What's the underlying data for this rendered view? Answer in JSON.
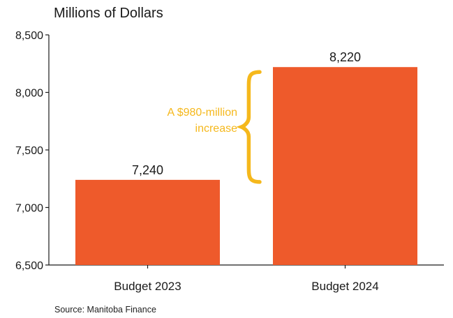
{
  "unit_label": "Millions of Dollars",
  "source": "Source: Manitoba Finance",
  "colors": {
    "bar": "#EE5A2B",
    "annotation": "#F5B81C",
    "axis": "#1a1a1a"
  },
  "chart_data": {
    "type": "bar",
    "categories": [
      "Budget 2023",
      "Budget 2024"
    ],
    "values": [
      7240,
      8220
    ],
    "data_labels": [
      "7,240",
      "8,220"
    ],
    "ylabel": "Millions of Dollars",
    "ylim": [
      6500,
      8500
    ],
    "yticks": [
      6500,
      7000,
      7500,
      8000,
      8500
    ],
    "ytick_labels": [
      "6,500",
      "7,000",
      "7,500",
      "8,000",
      "8,500"
    ],
    "grid": false,
    "annotation": {
      "lines": [
        "A $980-million",
        "increase"
      ],
      "from_value": 7240,
      "to_value": 8220
    }
  }
}
